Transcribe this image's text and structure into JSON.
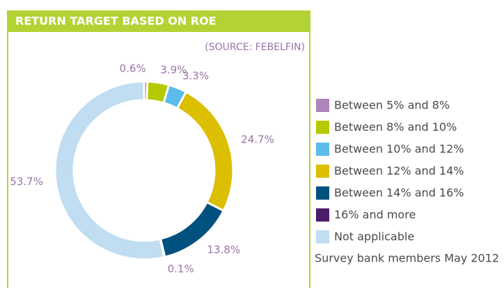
{
  "chart_data": {
    "type": "donut",
    "title": "RETURN TARGET BASED ON ROE",
    "subtitle": "(SOURCE: FEBELFIN)",
    "note": "Survey bank members May 2012",
    "categories": [
      "Between 5% and 8%",
      "Between 8% and 10%",
      "Between 10% and 12%",
      "Between 12% and 14%",
      "Between 14% and 16%",
      "16% and more",
      "Not applicable"
    ],
    "values": [
      0.6,
      3.9,
      3.3,
      24.7,
      13.8,
      0.1,
      53.7
    ],
    "value_labels": [
      "0.6%",
      "3.9%",
      "3.3%",
      "24.7%",
      "13.8%",
      "0.1%",
      "53.7%"
    ],
    "colors": [
      "#b083bb",
      "#b5c900",
      "#5bbce9",
      "#dcbf00",
      "#00517e",
      "#4b1c6a",
      "#c0ddf2"
    ]
  }
}
